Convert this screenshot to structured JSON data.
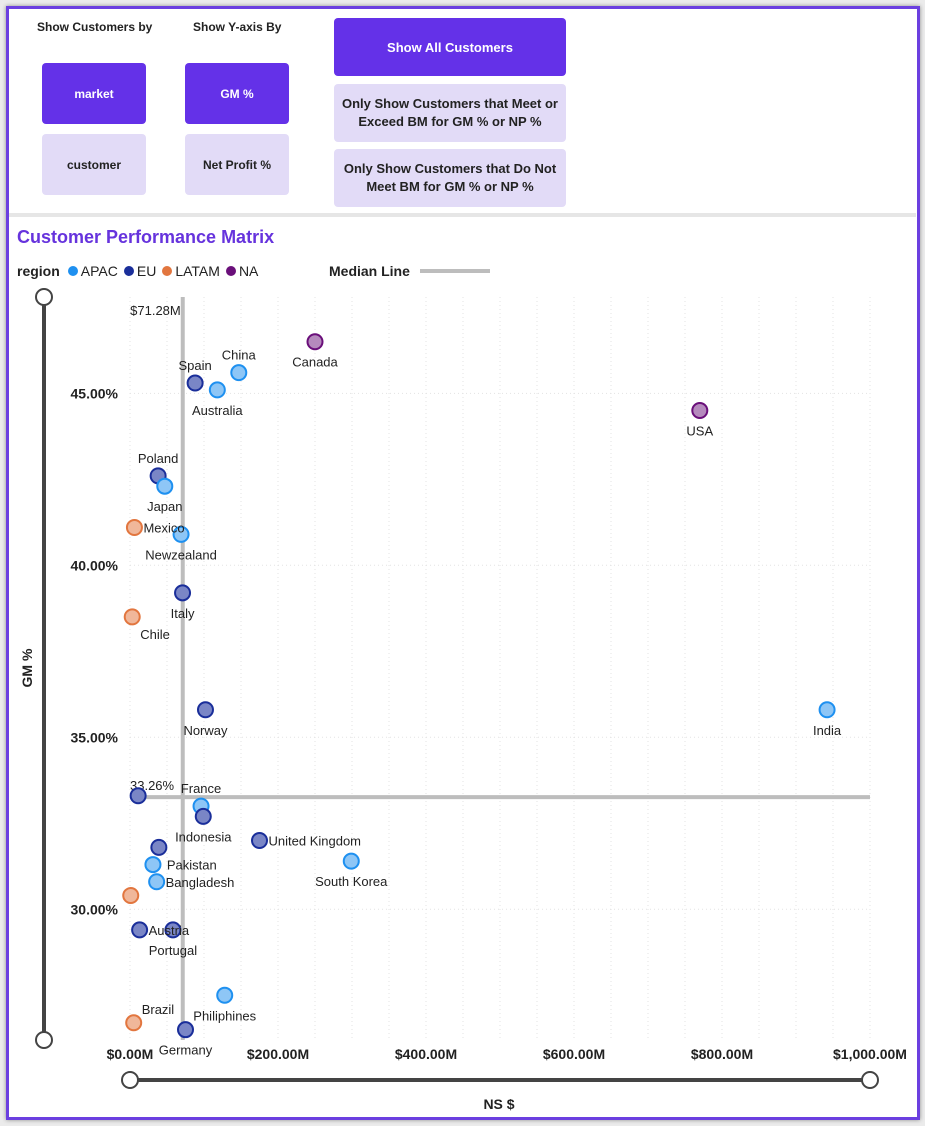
{
  "filters": {
    "customers_header": "Show Customers by",
    "yaxis_header": "Show Y-axis By",
    "market_label": "market",
    "customer_label": "customer",
    "gm_label": "GM %",
    "np_label": "Net Profit %",
    "show_all_label": "Show All Customers",
    "meet_label": "Only Show Customers that Meet or Exceed BM for GM % or NP %",
    "not_meet_label": "Only Show Customers that Do Not Meet BM for GM % or NP %"
  },
  "chart_title": "Customer Performance Matrix",
  "legend": {
    "title": "region",
    "items": [
      {
        "name": "APAC",
        "color": "#1e90f0"
      },
      {
        "name": "EU",
        "color": "#1a2e9a"
      },
      {
        "name": "LATAM",
        "color": "#e2763f"
      },
      {
        "name": "NA",
        "color": "#6a0f7a"
      }
    ],
    "median_label": "Median Line"
  },
  "colors": {
    "accent": "#6431e8",
    "accent_light": "#e2dbf7",
    "title": "#6633dd",
    "median_line": "#bdbdbd"
  },
  "chart_data": {
    "type": "scatter",
    "title": "Customer Performance Matrix",
    "xlabel": "NS $",
    "ylabel": "GM %",
    "xlim": [
      0,
      1000
    ],
    "ylim": [
      26.2,
      47.8
    ],
    "x_ticks": [
      {
        "value": 0,
        "label": "$0.00M"
      },
      {
        "value": 200,
        "label": "$200.00M"
      },
      {
        "value": 400,
        "label": "$400.00M"
      },
      {
        "value": 600,
        "label": "$600.00M"
      },
      {
        "value": 800,
        "label": "$800.00M"
      },
      {
        "value": 1000,
        "label": "$1,000.00M"
      }
    ],
    "y_ticks": [
      {
        "value": 30,
        "label": "30.00%"
      },
      {
        "value": 35,
        "label": "35.00%"
      },
      {
        "value": 40,
        "label": "40.00%"
      },
      {
        "value": 45,
        "label": "45.00%"
      }
    ],
    "median_x": {
      "value": 71.28,
      "label": "$71.28M"
    },
    "median_y": {
      "value": 33.26,
      "label": "33.26%"
    },
    "grid": true,
    "legend_position": "top-left",
    "points": [
      {
        "name": "Canada",
        "region": "NA",
        "x": 250,
        "y": 46.5,
        "label_pos": "below"
      },
      {
        "name": "China",
        "region": "APAC",
        "x": 147,
        "y": 45.6,
        "label_pos": "above"
      },
      {
        "name": "Spain",
        "region": "EU",
        "x": 88,
        "y": 45.3,
        "label_pos": "above"
      },
      {
        "name": "Australia",
        "region": "APAC",
        "x": 118,
        "y": 45.1,
        "label_pos": "below"
      },
      {
        "name": "USA",
        "region": "NA",
        "x": 770,
        "y": 44.5,
        "label_pos": "below"
      },
      {
        "name": "Poland",
        "region": "EU",
        "x": 38,
        "y": 42.6,
        "label_pos": "above"
      },
      {
        "name": "Japan",
        "region": "APAC",
        "x": 47,
        "y": 42.3,
        "label_pos": "below"
      },
      {
        "name": "Mexico",
        "region": "LATAM",
        "x": 6,
        "y": 41.1,
        "label_pos": "right"
      },
      {
        "name": "Newzealand",
        "region": "APAC",
        "x": 69,
        "y": 40.9,
        "label_pos": "below"
      },
      {
        "name": "Italy",
        "region": "EU",
        "x": 71,
        "y": 39.2,
        "label_pos": "below"
      },
      {
        "name": "Chile",
        "region": "LATAM",
        "x": 3,
        "y": 38.5,
        "label_pos": "below-right"
      },
      {
        "name": "Norway",
        "region": "EU",
        "x": 102,
        "y": 35.8,
        "label_pos": "below"
      },
      {
        "name": "India",
        "region": "APAC",
        "x": 942,
        "y": 35.8,
        "label_pos": "below"
      },
      {
        "name": "",
        "region": "EU",
        "x": 11,
        "y": 33.3,
        "label_pos": "none"
      },
      {
        "name": "France",
        "region": "APAC",
        "x": 96,
        "y": 33.0,
        "label_pos": "above"
      },
      {
        "name": "Indonesia",
        "region": "EU",
        "x": 99,
        "y": 32.7,
        "label_pos": "below"
      },
      {
        "name": "United Kingdom",
        "region": "EU",
        "x": 175,
        "y": 32.0,
        "label_pos": "right"
      },
      {
        "name": "Pakistan",
        "region": "EU",
        "x": 39,
        "y": 31.8,
        "label_pos": "below-right"
      },
      {
        "name": "South Korea",
        "region": "APAC",
        "x": 299,
        "y": 31.4,
        "label_pos": "below"
      },
      {
        "name": "",
        "region": "APAC",
        "x": 31,
        "y": 31.3,
        "label_pos": "none"
      },
      {
        "name": "Bangladesh",
        "region": "APAC",
        "x": 36,
        "y": 30.8,
        "label_pos": "right"
      },
      {
        "name": "",
        "region": "LATAM",
        "x": 1,
        "y": 30.4,
        "label_pos": "none"
      },
      {
        "name": "Austria",
        "region": "EU",
        "x": 13,
        "y": 29.4,
        "label_pos": "right"
      },
      {
        "name": "Portugal",
        "region": "EU",
        "x": 58,
        "y": 29.4,
        "label_pos": "below"
      },
      {
        "name": "Philiphines",
        "region": "APAC",
        "x": 128,
        "y": 27.5,
        "label_pos": "below"
      },
      {
        "name": "Brazil",
        "region": "LATAM",
        "x": 5,
        "y": 26.7,
        "label_pos": "above-right"
      },
      {
        "name": "Germany",
        "region": "EU",
        "x": 75,
        "y": 26.5,
        "label_pos": "below"
      }
    ]
  }
}
